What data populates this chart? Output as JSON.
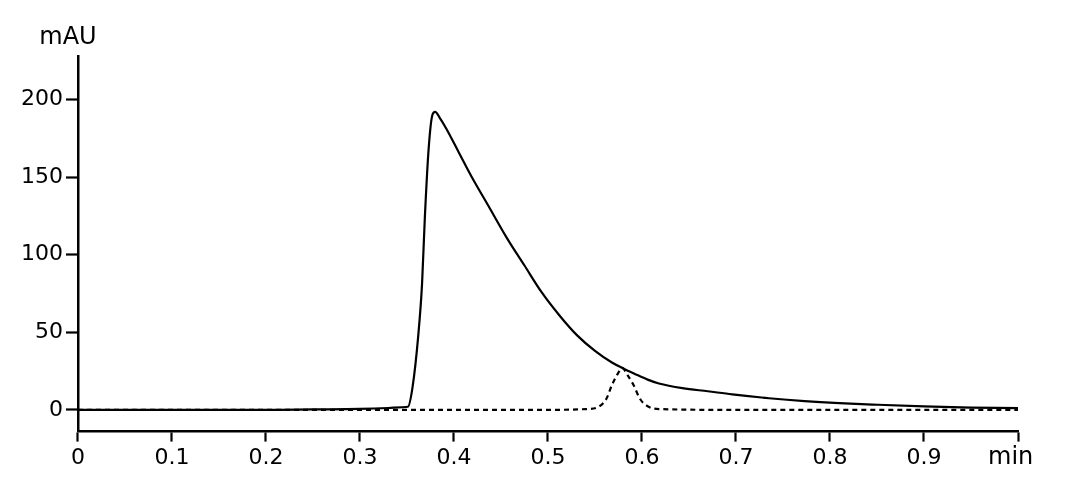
{
  "chart_data": {
    "type": "line",
    "xlabel": "min",
    "ylabel": "mAU",
    "xlim": [
      0,
      1.0
    ],
    "ylim": [
      -14,
      228
    ],
    "xticks": [
      0,
      0.1,
      0.2,
      0.3,
      0.4,
      0.5,
      0.6,
      0.7,
      0.8,
      0.9,
      {
        "value": 1.0,
        "label": null
      }
    ],
    "yticks": [
      0,
      50,
      100,
      150,
      200
    ],
    "grid": false,
    "legend": false,
    "marker": "none",
    "series": [
      {
        "color": "#000000",
        "line_style": "solid",
        "x": [
          0,
          0.1,
          0.2,
          0.25,
          0.3,
          0.33,
          0.345,
          0.351,
          0.356,
          0.362,
          0.366,
          0.369,
          0.373,
          0.377,
          0.38,
          0.385,
          0.392,
          0.405,
          0.418,
          0.437,
          0.456,
          0.475,
          0.493,
          0.512,
          0.531,
          0.55,
          0.568,
          0.579,
          0.593,
          0.606,
          0.618,
          0.643,
          0.67,
          0.696,
          0.735,
          0.773,
          0.81,
          0.851,
          0.9,
          0.95,
          1.0
        ],
        "values": [
          0,
          0,
          0,
          0.3,
          0.6,
          1.2,
          1.7,
          2,
          15,
          48,
          81,
          124,
          168,
          190,
          192,
          188,
          181,
          166,
          151,
          131,
          111,
          93,
          76,
          61,
          48,
          38,
          30.5,
          27,
          23,
          19.5,
          17,
          14,
          12,
          10,
          7.5,
          5.6,
          4.3,
          3.3,
          2.3,
          1.5,
          1.1
        ]
      },
      {
        "color": "#000000",
        "line_style": "dashed",
        "x": [
          0,
          0.1,
          0.2,
          0.3,
          0.4,
          0.5,
          0.54,
          0.552,
          0.562,
          0.568,
          0.574,
          0.579,
          0.585,
          0.591,
          0.598,
          0.607,
          0.62,
          0.7,
          0.8,
          0.9,
          1.0
        ],
        "values": [
          0,
          0,
          0,
          0,
          0,
          0,
          0.5,
          1.5,
          7,
          16,
          23,
          27,
          22,
          16,
          7,
          2,
          0.5,
          0,
          0,
          0,
          0
        ]
      }
    ]
  }
}
